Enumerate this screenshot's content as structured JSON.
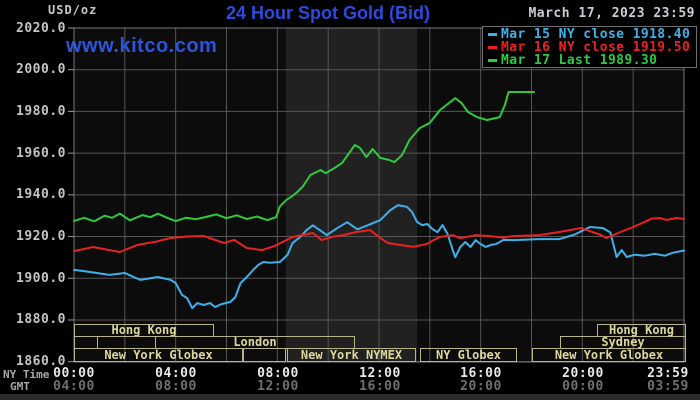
{
  "header": {
    "units_label": "USD/oz",
    "title": "24 Hour Spot Gold (Bid)",
    "datetime": "March 17, 2023 23:59",
    "watermark": "www.kitco.com"
  },
  "legend": {
    "items": [
      {
        "label": "Mar 15 NY close 1918.40"
      },
      {
        "label": "Mar 16 NY close 1919.50"
      },
      {
        "label": "Mar 17 Last 1989.30"
      }
    ]
  },
  "yaxis": {
    "labels": [
      "2020.0",
      "2000.0",
      "1980.0",
      "1960.0",
      "1940.0",
      "1920.0",
      "1900.0",
      "1880.0",
      "1860.0"
    ]
  },
  "xaxis": {
    "ny_label": "NY Time",
    "gmt_label": "GMT",
    "ny_times": [
      "00:00",
      "04:00",
      "08:00",
      "12:00",
      "16:00",
      "20:00",
      "23:59"
    ],
    "gmt_times": [
      "04:00",
      "08:00",
      "12:00",
      "16:00",
      "20:00",
      "00:00",
      "03:59"
    ]
  },
  "sessions": [
    {
      "label": "Hong Kong"
    },
    {
      "label": ""
    },
    {
      "label": "London"
    },
    {
      "label": "New York Globex"
    },
    {
      "label": ""
    },
    {
      "label": "New York NYMEX"
    },
    {
      "label": "NY Globex"
    },
    {
      "label": "New York Globex"
    },
    {
      "label": "Sydney"
    },
    {
      "label": "Hong Kong"
    }
  ],
  "chart_data": {
    "type": "line",
    "title": "24 Hour Spot Gold (Bid)",
    "units": "USD/oz",
    "x_unit": "hours, NY time",
    "x_range": [
      0,
      24
    ],
    "y_range": [
      1860,
      2020
    ],
    "y_tick_step": 20,
    "highlight_band": {
      "name": "New York NYMEX floor session",
      "start_hour": 8.33,
      "end_hour": 13.5
    },
    "series": [
      {
        "name": "Mar 15",
        "close": 1918.4,
        "color": "#3eb1ea",
        "points": [
          [
            0,
            1904
          ],
          [
            0.43,
            1903.4
          ],
          [
            1.4,
            1901.6
          ],
          [
            2.0,
            1902.5
          ],
          [
            2.6,
            1899.2
          ],
          [
            3.3,
            1900.6
          ],
          [
            3.8,
            1899.2
          ],
          [
            4.0,
            1897.7
          ],
          [
            4.25,
            1892
          ],
          [
            4.45,
            1890.5
          ],
          [
            4.65,
            1885.7
          ],
          [
            4.85,
            1888.1
          ],
          [
            5.1,
            1887.2
          ],
          [
            5.35,
            1888.1
          ],
          [
            5.55,
            1886.2
          ],
          [
            5.8,
            1887.6
          ],
          [
            6.15,
            1888.6
          ],
          [
            6.35,
            1891
          ],
          [
            6.55,
            1897.7
          ],
          [
            6.8,
            1900.6
          ],
          [
            7.05,
            1904
          ],
          [
            7.25,
            1906.4
          ],
          [
            7.45,
            1907.8
          ],
          [
            7.7,
            1907.4
          ],
          [
            8.1,
            1907.8
          ],
          [
            8.4,
            1911.2
          ],
          [
            8.6,
            1916.9
          ],
          [
            8.9,
            1919.8
          ],
          [
            9.15,
            1923.1
          ],
          [
            9.4,
            1925.4
          ],
          [
            9.95,
            1920.7
          ],
          [
            10.35,
            1924
          ],
          [
            10.75,
            1926.9
          ],
          [
            11.15,
            1923.5
          ],
          [
            11.55,
            1925.4
          ],
          [
            12.05,
            1927.9
          ],
          [
            12.45,
            1932.7
          ],
          [
            12.75,
            1935.1
          ],
          [
            13.1,
            1934.2
          ],
          [
            13.3,
            1931.8
          ],
          [
            13.5,
            1927
          ],
          [
            13.7,
            1925.5
          ],
          [
            13.9,
            1926
          ],
          [
            14.1,
            1923.6
          ],
          [
            14.3,
            1922.1
          ],
          [
            14.5,
            1925.5
          ],
          [
            14.7,
            1921.2
          ],
          [
            14.9,
            1913.5
          ],
          [
            15.0,
            1910.1
          ],
          [
            15.2,
            1915
          ],
          [
            15.4,
            1917.4
          ],
          [
            15.6,
            1915
          ],
          [
            15.8,
            1918.3
          ],
          [
            16.0,
            1916.4
          ],
          [
            16.2,
            1915
          ],
          [
            16.4,
            1916
          ],
          [
            16.6,
            1916.4
          ],
          [
            16.9,
            1918.4
          ],
          [
            17.3,
            1918.3
          ],
          [
            18.3,
            1918.8
          ],
          [
            19.1,
            1918.8
          ],
          [
            19.7,
            1921
          ],
          [
            20.3,
            1924.6
          ],
          [
            20.8,
            1924.1
          ],
          [
            21.1,
            1922
          ],
          [
            21.35,
            1910.2
          ],
          [
            21.55,
            1913.5
          ],
          [
            21.75,
            1910.2
          ],
          [
            22.05,
            1911.3
          ],
          [
            22.45,
            1910.8
          ],
          [
            22.85,
            1911.7
          ],
          [
            23.25,
            1910.8
          ],
          [
            23.55,
            1912.2
          ],
          [
            24,
            1913.3
          ]
        ]
      },
      {
        "name": "Mar 16",
        "close": 1919.5,
        "color": "#e82222",
        "points": [
          [
            0,
            1913
          ],
          [
            0.75,
            1915
          ],
          [
            1.8,
            1912.6
          ],
          [
            2.5,
            1916
          ],
          [
            3.2,
            1917.5
          ],
          [
            3.8,
            1919.3
          ],
          [
            4.4,
            1920
          ],
          [
            5.1,
            1920.3
          ],
          [
            5.5,
            1918.6
          ],
          [
            5.9,
            1916.9
          ],
          [
            6.3,
            1918.4
          ],
          [
            6.8,
            1914.5
          ],
          [
            7.4,
            1913.5
          ],
          [
            7.9,
            1915.5
          ],
          [
            8.6,
            1919.8
          ],
          [
            9.1,
            1921
          ],
          [
            9.4,
            1921.7
          ],
          [
            9.75,
            1918.3
          ],
          [
            10.2,
            1920
          ],
          [
            10.6,
            1920.7
          ],
          [
            11.1,
            1922.2
          ],
          [
            11.65,
            1923.1
          ],
          [
            12.05,
            1919.3
          ],
          [
            12.35,
            1916.9
          ],
          [
            12.8,
            1916
          ],
          [
            13.35,
            1915.1
          ],
          [
            13.9,
            1916.5
          ],
          [
            14.15,
            1918.3
          ],
          [
            14.4,
            1919.8
          ],
          [
            14.9,
            1920.7
          ],
          [
            15.2,
            1919.2
          ],
          [
            15.8,
            1920.7
          ],
          [
            16.35,
            1920.2
          ],
          [
            16.9,
            1919.5
          ],
          [
            17.25,
            1920.2
          ],
          [
            18.3,
            1920.7
          ],
          [
            19.1,
            1922.2
          ],
          [
            19.6,
            1923.3
          ],
          [
            19.95,
            1924.1
          ],
          [
            20.7,
            1920.9
          ],
          [
            20.95,
            1919.3
          ],
          [
            21.5,
            1922.2
          ],
          [
            22.0,
            1924.6
          ],
          [
            22.45,
            1927
          ],
          [
            22.7,
            1928.5
          ],
          [
            23.05,
            1928.9
          ],
          [
            23.3,
            1928
          ],
          [
            23.7,
            1928.9
          ],
          [
            24,
            1928.4
          ]
        ]
      },
      {
        "name": "Mar 17",
        "last": 1989.3,
        "color": "#2ec93e",
        "points": [
          [
            0,
            1927.5
          ],
          [
            0.4,
            1929
          ],
          [
            0.8,
            1927.3
          ],
          [
            1.2,
            1930
          ],
          [
            1.5,
            1929
          ],
          [
            1.8,
            1931
          ],
          [
            2.2,
            1927.8
          ],
          [
            2.7,
            1930.3
          ],
          [
            3.0,
            1929.3
          ],
          [
            3.3,
            1931
          ],
          [
            3.7,
            1928.8
          ],
          [
            4.0,
            1927.4
          ],
          [
            4.4,
            1929
          ],
          [
            4.8,
            1928.3
          ],
          [
            5.2,
            1929.4
          ],
          [
            5.6,
            1930.6
          ],
          [
            6.0,
            1928.8
          ],
          [
            6.4,
            1930.2
          ],
          [
            6.8,
            1928.4
          ],
          [
            7.2,
            1929.6
          ],
          [
            7.6,
            1927.9
          ],
          [
            7.95,
            1929.3
          ],
          [
            8.1,
            1934.5
          ],
          [
            8.35,
            1937.5
          ],
          [
            8.6,
            1939.5
          ],
          [
            8.8,
            1941.5
          ],
          [
            9.0,
            1944
          ],
          [
            9.3,
            1949.5
          ],
          [
            9.7,
            1951.9
          ],
          [
            9.9,
            1950.4
          ],
          [
            10.2,
            1952.5
          ],
          [
            10.55,
            1955.3
          ],
          [
            11.05,
            1963.9
          ],
          [
            11.25,
            1962.5
          ],
          [
            11.5,
            1958.1
          ],
          [
            11.75,
            1962
          ],
          [
            12.05,
            1957.7
          ],
          [
            12.4,
            1956.7
          ],
          [
            12.6,
            1955.7
          ],
          [
            12.9,
            1959
          ],
          [
            13.2,
            1966.3
          ],
          [
            13.6,
            1972
          ],
          [
            14.0,
            1974.5
          ],
          [
            14.4,
            1980.7
          ],
          [
            15.0,
            1986.4
          ],
          [
            15.25,
            1984
          ],
          [
            15.5,
            1979.7
          ],
          [
            15.85,
            1977.3
          ],
          [
            16.25,
            1975.9
          ],
          [
            16.75,
            1977.3
          ],
          [
            16.95,
            1983
          ],
          [
            17.1,
            1989.3
          ],
          [
            18.1,
            1989.3
          ]
        ]
      }
    ]
  }
}
